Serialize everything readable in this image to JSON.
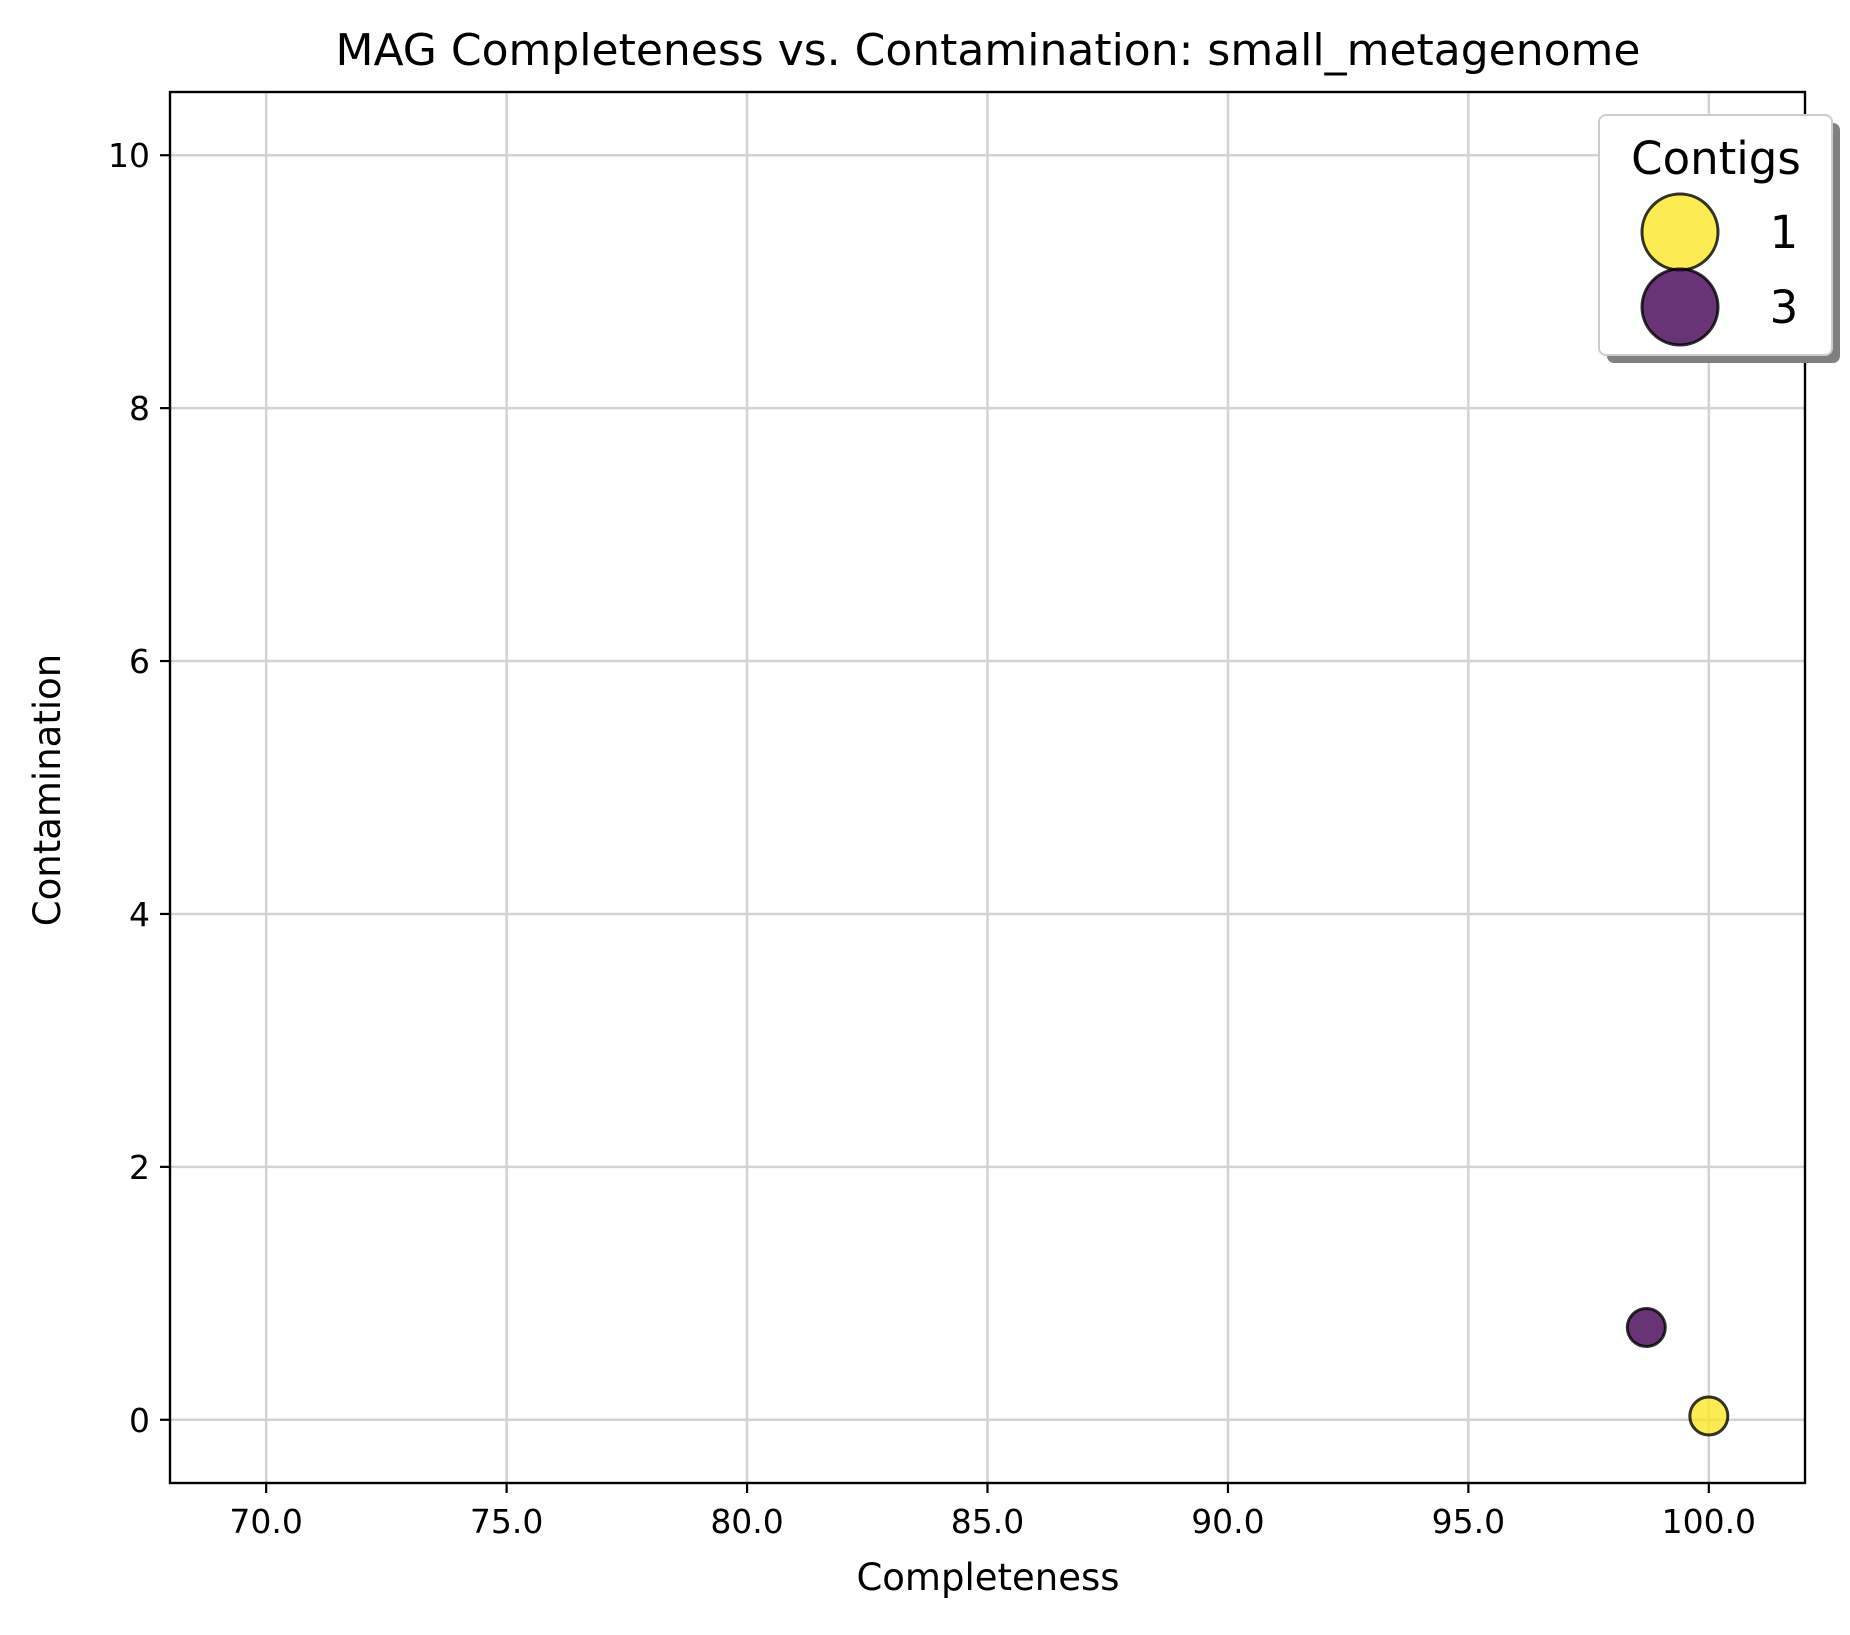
{
  "chart_data": {
    "type": "scatter",
    "title": "MAG Completeness vs. Contamination: small_metagenome",
    "xlabel": "Completeness",
    "ylabel": "Contamination",
    "xlim": [
      68.0,
      102.0
    ],
    "ylim": [
      -0.5,
      10.5
    ],
    "xticks": [
      70.0,
      75.0,
      80.0,
      85.0,
      90.0,
      95.0,
      100.0
    ],
    "xtick_labels": [
      "70.0",
      "75.0",
      "80.0",
      "85.0",
      "90.0",
      "95.0",
      "100.0"
    ],
    "yticks": [
      0,
      2,
      4,
      6,
      8,
      10
    ],
    "ytick_labels": [
      "0",
      "2",
      "4",
      "6",
      "8",
      "10"
    ],
    "grid": true,
    "points": [
      {
        "x": 98.7,
        "y": 0.73,
        "contigs": 3,
        "color": "#440154"
      },
      {
        "x": 100.0,
        "y": 0.03,
        "contigs": 1,
        "color": "#fde725"
      }
    ],
    "legend": {
      "title": "Contigs",
      "placement": "top-right",
      "entries": [
        {
          "label": "1",
          "color": "#fde725"
        },
        {
          "label": "3",
          "color": "#440154"
        }
      ]
    }
  }
}
